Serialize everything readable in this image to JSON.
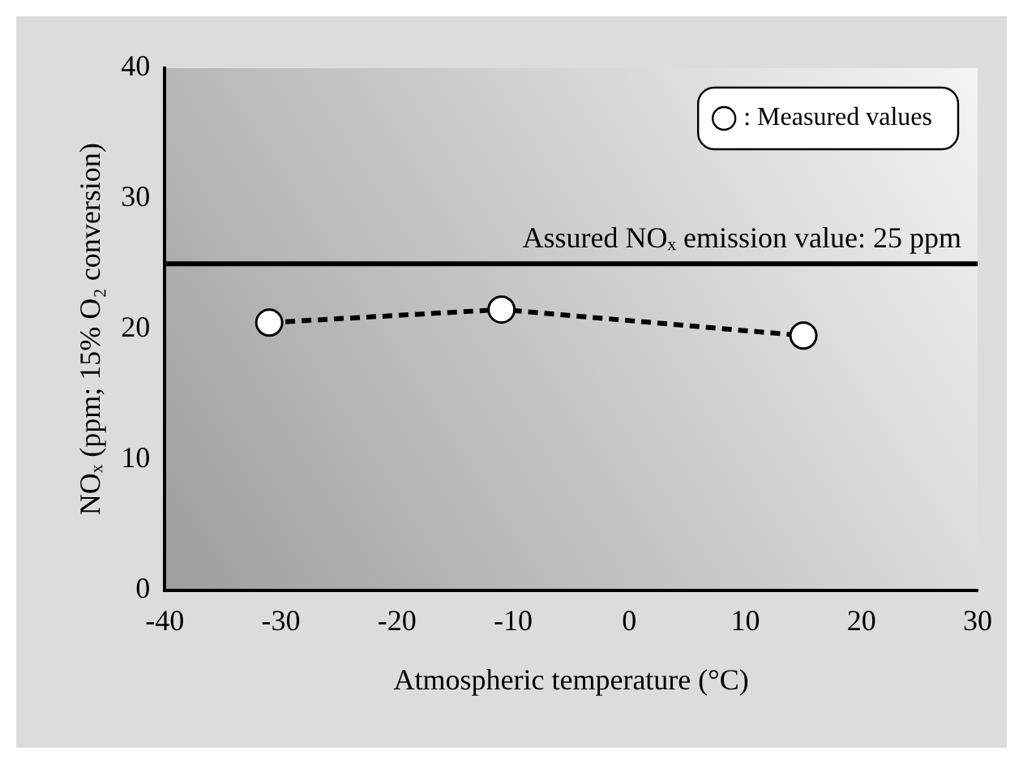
{
  "chart_data": {
    "type": "line",
    "xlabel": "Atmospheric temperature (°C)",
    "ylabel": "NOₓ (ppm; 15% O₂ conversion)",
    "xlim": [
      -40,
      30
    ],
    "xticks": [
      -40,
      -30,
      -20,
      -10,
      0,
      10,
      20,
      30
    ],
    "ylim": [
      0,
      40
    ],
    "yticks": [
      0,
      10,
      20,
      30,
      40
    ],
    "series": [
      {
        "name": ": Measured values",
        "color": "#000000",
        "x": [
          -31,
          -11,
          15
        ],
        "values": [
          20.5,
          21.5,
          19.5
        ]
      }
    ],
    "marker": "circle",
    "line_style": "dashed",
    "grid": false,
    "legend": "top right",
    "ref_lines": [
      {
        "axis": "y",
        "value": 25,
        "label": "Assured NOₓ emission value: 25 ppm",
        "color": "#000000"
      }
    ]
  }
}
